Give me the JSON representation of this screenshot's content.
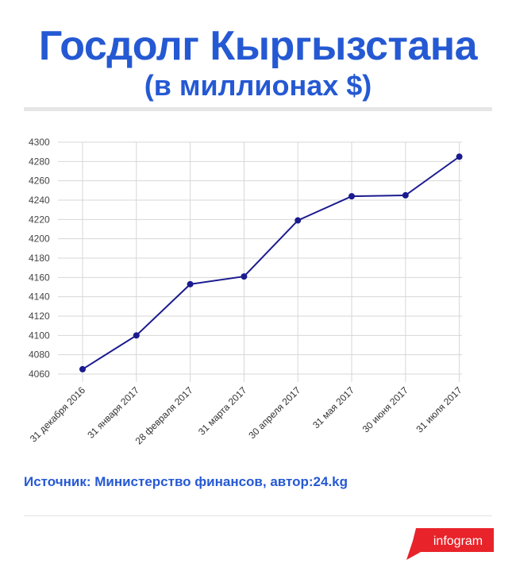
{
  "title": "Госдолг Кыргызстана",
  "subtitle": "(в миллионах $)",
  "source": "Источник: Министерство финансов, автор:24.kg",
  "logo": {
    "text": "infogram",
    "color": "#e8232a"
  },
  "colors": {
    "accent": "#2559d3",
    "line": "#1b1b8f",
    "grid": "#d7d7d7"
  },
  "chart_data": {
    "type": "line",
    "categories": [
      "31 декабря 2016",
      "31 января 2017",
      "28 февраля 2017",
      "31 марта 2017",
      "30 апреля 2017",
      "31 мая 2017",
      "30 июня 2017",
      "31 июля 2017"
    ],
    "series": [
      {
        "values": [
          4065,
          4100,
          4153,
          4161,
          4219,
          4244,
          4245,
          4285
        ]
      }
    ],
    "yticks": [
      4060,
      4080,
      4100,
      4120,
      4140,
      4160,
      4180,
      4200,
      4220,
      4240,
      4260,
      4280,
      4300
    ],
    "ylim": [
      4060,
      4300
    ],
    "title": "Госдолг Кыргызстана",
    "subtitle": "(в миллионах $)",
    "xlabel": "",
    "ylabel": "",
    "grid": true,
    "legend": "none"
  }
}
